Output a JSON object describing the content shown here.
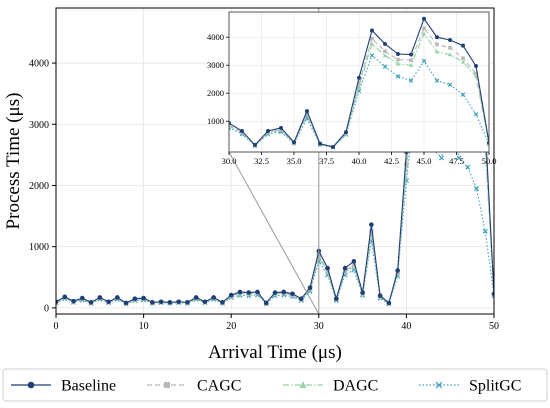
{
  "chart_data": {
    "type": "line",
    "title": "",
    "xlabel": "Arrival Time (μs)",
    "ylabel": "Process Time (μs)",
    "xlim": [
      0,
      50
    ],
    "ylim": [
      -100,
      4900
    ],
    "xticks": [
      0,
      10,
      20,
      30,
      40,
      50
    ],
    "yticks": [
      0,
      1000,
      2000,
      3000,
      4000
    ],
    "grid": true,
    "legend_position": "bottom",
    "x": [
      0,
      1,
      2,
      3,
      4,
      5,
      6,
      7,
      8,
      9,
      10,
      11,
      12,
      13,
      14,
      15,
      16,
      17,
      18,
      19,
      20,
      21,
      22,
      23,
      24,
      25,
      26,
      27,
      28,
      29,
      30,
      31,
      32,
      33,
      34,
      35,
      36,
      37,
      38,
      39,
      40,
      41,
      42,
      43,
      44,
      45,
      46,
      47,
      48,
      49,
      50
    ],
    "series": [
      {
        "name": "Baseline",
        "color": "#1f3f77",
        "marker": "circle",
        "dash": "solid",
        "values": [
          100,
          180,
          110,
          160,
          90,
          170,
          100,
          170,
          80,
          150,
          160,
          90,
          100,
          90,
          100,
          90,
          170,
          100,
          170,
          90,
          210,
          260,
          250,
          260,
          80,
          250,
          260,
          230,
          150,
          330,
          930,
          650,
          150,
          650,
          760,
          250,
          1360,
          200,
          80,
          610,
          2550,
          4240,
          3760,
          3400,
          3380,
          4660,
          4000,
          3900,
          3700,
          2970,
          230
        ]
      },
      {
        "name": "CAGC",
        "color": "#b8b8b8",
        "marker": "square",
        "dash": "dashed",
        "values": [
          90,
          170,
          100,
          150,
          85,
          160,
          95,
          160,
          75,
          140,
          150,
          85,
          95,
          85,
          95,
          85,
          160,
          95,
          160,
          85,
          195,
          240,
          235,
          245,
          75,
          235,
          245,
          215,
          140,
          310,
          860,
          600,
          140,
          600,
          700,
          230,
          1250,
          185,
          75,
          570,
          2350,
          3950,
          3500,
          3200,
          3180,
          4320,
          3740,
          3620,
          3250,
          2700,
          220
        ]
      },
      {
        "name": "DAGC",
        "color": "#93d3a2",
        "marker": "triangle",
        "dash": "dashdot",
        "values": [
          88,
          165,
          98,
          148,
          82,
          155,
          92,
          155,
          72,
          136,
          145,
          82,
          92,
          82,
          92,
          82,
          155,
          92,
          155,
          82,
          190,
          232,
          228,
          238,
          72,
          228,
          238,
          208,
          136,
          300,
          830,
          585,
          136,
          585,
          680,
          225,
          1210,
          180,
          72,
          555,
          2250,
          3750,
          3350,
          3050,
          3000,
          4120,
          3480,
          3380,
          3120,
          2600,
          215
        ]
      },
      {
        "name": "SplitGC",
        "color": "#3a9fc1",
        "marker": "x",
        "dash": "dotted",
        "values": [
          80,
          150,
          90,
          130,
          75,
          140,
          85,
          140,
          65,
          120,
          130,
          75,
          85,
          75,
          85,
          75,
          140,
          85,
          140,
          75,
          170,
          205,
          200,
          210,
          65,
          200,
          210,
          185,
          120,
          270,
          760,
          540,
          120,
          540,
          620,
          205,
          1100,
          160,
          65,
          520,
          2080,
          3350,
          2950,
          2600,
          2450,
          3150,
          2450,
          2300,
          1950,
          1250,
          200
        ]
      }
    ],
    "inset": {
      "xlim": [
        30,
        50
      ],
      "ylim": [
        -100,
        4900
      ],
      "xticks": [
        30.0,
        32.5,
        35.0,
        37.5,
        40.0,
        42.5,
        45.0,
        47.5,
        50.0
      ],
      "xtick_labels": [
        "30.0",
        "32.5",
        "35.0",
        "37.5",
        "40.0",
        "42.5",
        "45.0",
        "47.5",
        "50.0"
      ],
      "yticks": [
        1000,
        2000,
        3000,
        4000
      ]
    }
  }
}
